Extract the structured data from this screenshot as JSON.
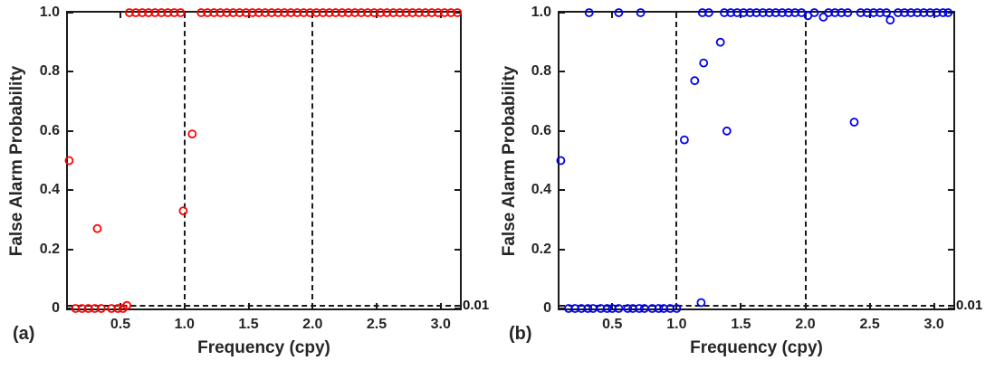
{
  "figure": {
    "background": "#ffffff",
    "axis_color": "#1a1a1a",
    "text_color": "#262626"
  },
  "chart_data": [
    {
      "type": "scatter",
      "panel_label": "(a)",
      "series_name": "false-alarm-probability-red",
      "marker": "open-circle",
      "marker_color": "#ff0000",
      "xlabel": "Frequency (cpy)",
      "ylabel": "False Alarm Probability",
      "xlim": [
        0.09,
        3.15
      ],
      "ylim": [
        0,
        1.0
      ],
      "xticks": [
        0.5,
        1.0,
        1.5,
        2.0,
        2.5,
        3.0
      ],
      "xtick_labels": [
        "0.5",
        "1.0",
        "1.5",
        "2.0",
        "2.5",
        "3.0"
      ],
      "yticks": [
        0,
        0.2,
        0.4,
        0.6,
        0.8,
        1.0
      ],
      "ytick_labels": [
        "0",
        "0.2",
        "0.4",
        "0.6",
        "0.8",
        "1.0"
      ],
      "grid": false,
      "legend": null,
      "vlines": [
        1.0,
        2.0
      ],
      "hline": {
        "y": 0.01,
        "label": "0.01"
      },
      "points": [
        [
          0.15,
          0
        ],
        [
          0.2,
          0
        ],
        [
          0.25,
          0
        ],
        [
          0.3,
          0
        ],
        [
          0.35,
          0
        ],
        [
          0.43,
          0
        ],
        [
          0.48,
          0
        ],
        [
          0.52,
          0
        ],
        [
          0.55,
          0.01
        ],
        [
          0.1,
          0.5
        ],
        [
          0.32,
          0.27
        ],
        [
          0.99,
          0.33
        ],
        [
          1.06,
          0.59
        ],
        [
          0.57,
          1
        ],
        [
          0.62,
          1
        ],
        [
          0.67,
          1
        ],
        [
          0.72,
          1
        ],
        [
          0.77,
          1
        ],
        [
          0.82,
          1
        ],
        [
          0.87,
          1
        ],
        [
          0.92,
          1
        ],
        [
          0.97,
          1
        ],
        [
          1.13,
          1
        ],
        [
          1.18,
          1
        ],
        [
          1.23,
          1
        ],
        [
          1.28,
          1
        ],
        [
          1.33,
          1
        ],
        [
          1.38,
          1
        ],
        [
          1.43,
          1
        ],
        [
          1.48,
          1
        ],
        [
          1.53,
          1
        ],
        [
          1.58,
          1
        ],
        [
          1.63,
          1
        ],
        [
          1.68,
          1
        ],
        [
          1.73,
          1
        ],
        [
          1.78,
          1
        ],
        [
          1.83,
          1
        ],
        [
          1.88,
          1
        ],
        [
          1.93,
          1
        ],
        [
          1.98,
          1
        ],
        [
          2.03,
          1
        ],
        [
          2.08,
          1
        ],
        [
          2.13,
          1
        ],
        [
          2.18,
          1
        ],
        [
          2.23,
          1
        ],
        [
          2.28,
          1
        ],
        [
          2.33,
          1
        ],
        [
          2.38,
          1
        ],
        [
          2.43,
          1
        ],
        [
          2.48,
          1
        ],
        [
          2.53,
          1
        ],
        [
          2.58,
          1
        ],
        [
          2.63,
          1
        ],
        [
          2.68,
          1
        ],
        [
          2.73,
          1
        ],
        [
          2.78,
          1
        ],
        [
          2.83,
          1
        ],
        [
          2.88,
          1
        ],
        [
          2.93,
          1
        ],
        [
          2.98,
          1
        ],
        [
          3.03,
          1
        ],
        [
          3.08,
          1
        ],
        [
          3.13,
          1
        ]
      ]
    },
    {
      "type": "scatter",
      "panel_label": "(b)",
      "series_name": "false-alarm-probability-blue",
      "marker": "open-circle",
      "marker_color": "#0000ee",
      "xlabel": "Frequency (cpy)",
      "ylabel": "False Alarm Probability",
      "xlim": [
        0.09,
        3.15
      ],
      "ylim": [
        0,
        1.0
      ],
      "xticks": [
        0.5,
        1.0,
        1.5,
        2.0,
        2.5,
        3.0
      ],
      "xtick_labels": [
        "0.5",
        "1.0",
        "1.5",
        "2.0",
        "2.5",
        "3.0"
      ],
      "yticks": [
        0,
        0.2,
        0.4,
        0.6,
        0.8,
        1.0
      ],
      "ytick_labels": [
        "0",
        "0.2",
        "0.4",
        "0.6",
        "0.8",
        "1.0"
      ],
      "grid": false,
      "legend": null,
      "vlines": [
        1.0,
        2.0
      ],
      "hline": {
        "y": 0.01,
        "label": "0.01"
      },
      "points": [
        [
          0.16,
          0
        ],
        [
          0.21,
          0
        ],
        [
          0.26,
          0
        ],
        [
          0.31,
          0
        ],
        [
          0.35,
          0
        ],
        [
          0.41,
          0
        ],
        [
          0.46,
          0
        ],
        [
          0.5,
          0
        ],
        [
          0.55,
          0
        ],
        [
          0.62,
          0
        ],
        [
          0.66,
          0
        ],
        [
          0.71,
          0
        ],
        [
          0.75,
          0
        ],
        [
          0.81,
          0
        ],
        [
          0.86,
          0
        ],
        [
          0.9,
          0
        ],
        [
          0.95,
          0
        ],
        [
          1.0,
          0
        ],
        [
          1.19,
          0.02
        ],
        [
          0.1,
          0.5
        ],
        [
          0.32,
          1
        ],
        [
          0.55,
          1
        ],
        [
          0.72,
          1
        ],
        [
          1.2,
          1
        ],
        [
          1.25,
          1
        ],
        [
          1.06,
          0.57
        ],
        [
          1.14,
          0.77
        ],
        [
          1.21,
          0.83
        ],
        [
          1.34,
          0.9
        ],
        [
          1.39,
          0.6
        ],
        [
          1.37,
          1
        ],
        [
          1.42,
          1
        ],
        [
          1.47,
          1
        ],
        [
          1.52,
          1
        ],
        [
          1.57,
          1
        ],
        [
          1.62,
          1
        ],
        [
          1.67,
          1
        ],
        [
          1.72,
          1
        ],
        [
          1.77,
          1
        ],
        [
          1.82,
          1
        ],
        [
          1.87,
          1
        ],
        [
          1.92,
          1
        ],
        [
          1.97,
          1
        ],
        [
          2.02,
          0.99
        ],
        [
          2.07,
          1
        ],
        [
          2.14,
          0.985
        ],
        [
          2.18,
          1
        ],
        [
          2.23,
          1
        ],
        [
          2.28,
          1
        ],
        [
          2.33,
          1
        ],
        [
          2.38,
          0.63
        ],
        [
          2.43,
          1
        ],
        [
          2.48,
          1
        ],
        [
          2.53,
          1
        ],
        [
          2.58,
          1
        ],
        [
          2.63,
          1
        ],
        [
          2.66,
          0.975
        ],
        [
          2.72,
          1
        ],
        [
          2.77,
          1
        ],
        [
          2.82,
          1
        ],
        [
          2.87,
          1
        ],
        [
          2.92,
          1
        ],
        [
          2.97,
          1
        ],
        [
          3.02,
          1
        ],
        [
          3.07,
          1
        ],
        [
          3.11,
          1
        ]
      ]
    }
  ]
}
